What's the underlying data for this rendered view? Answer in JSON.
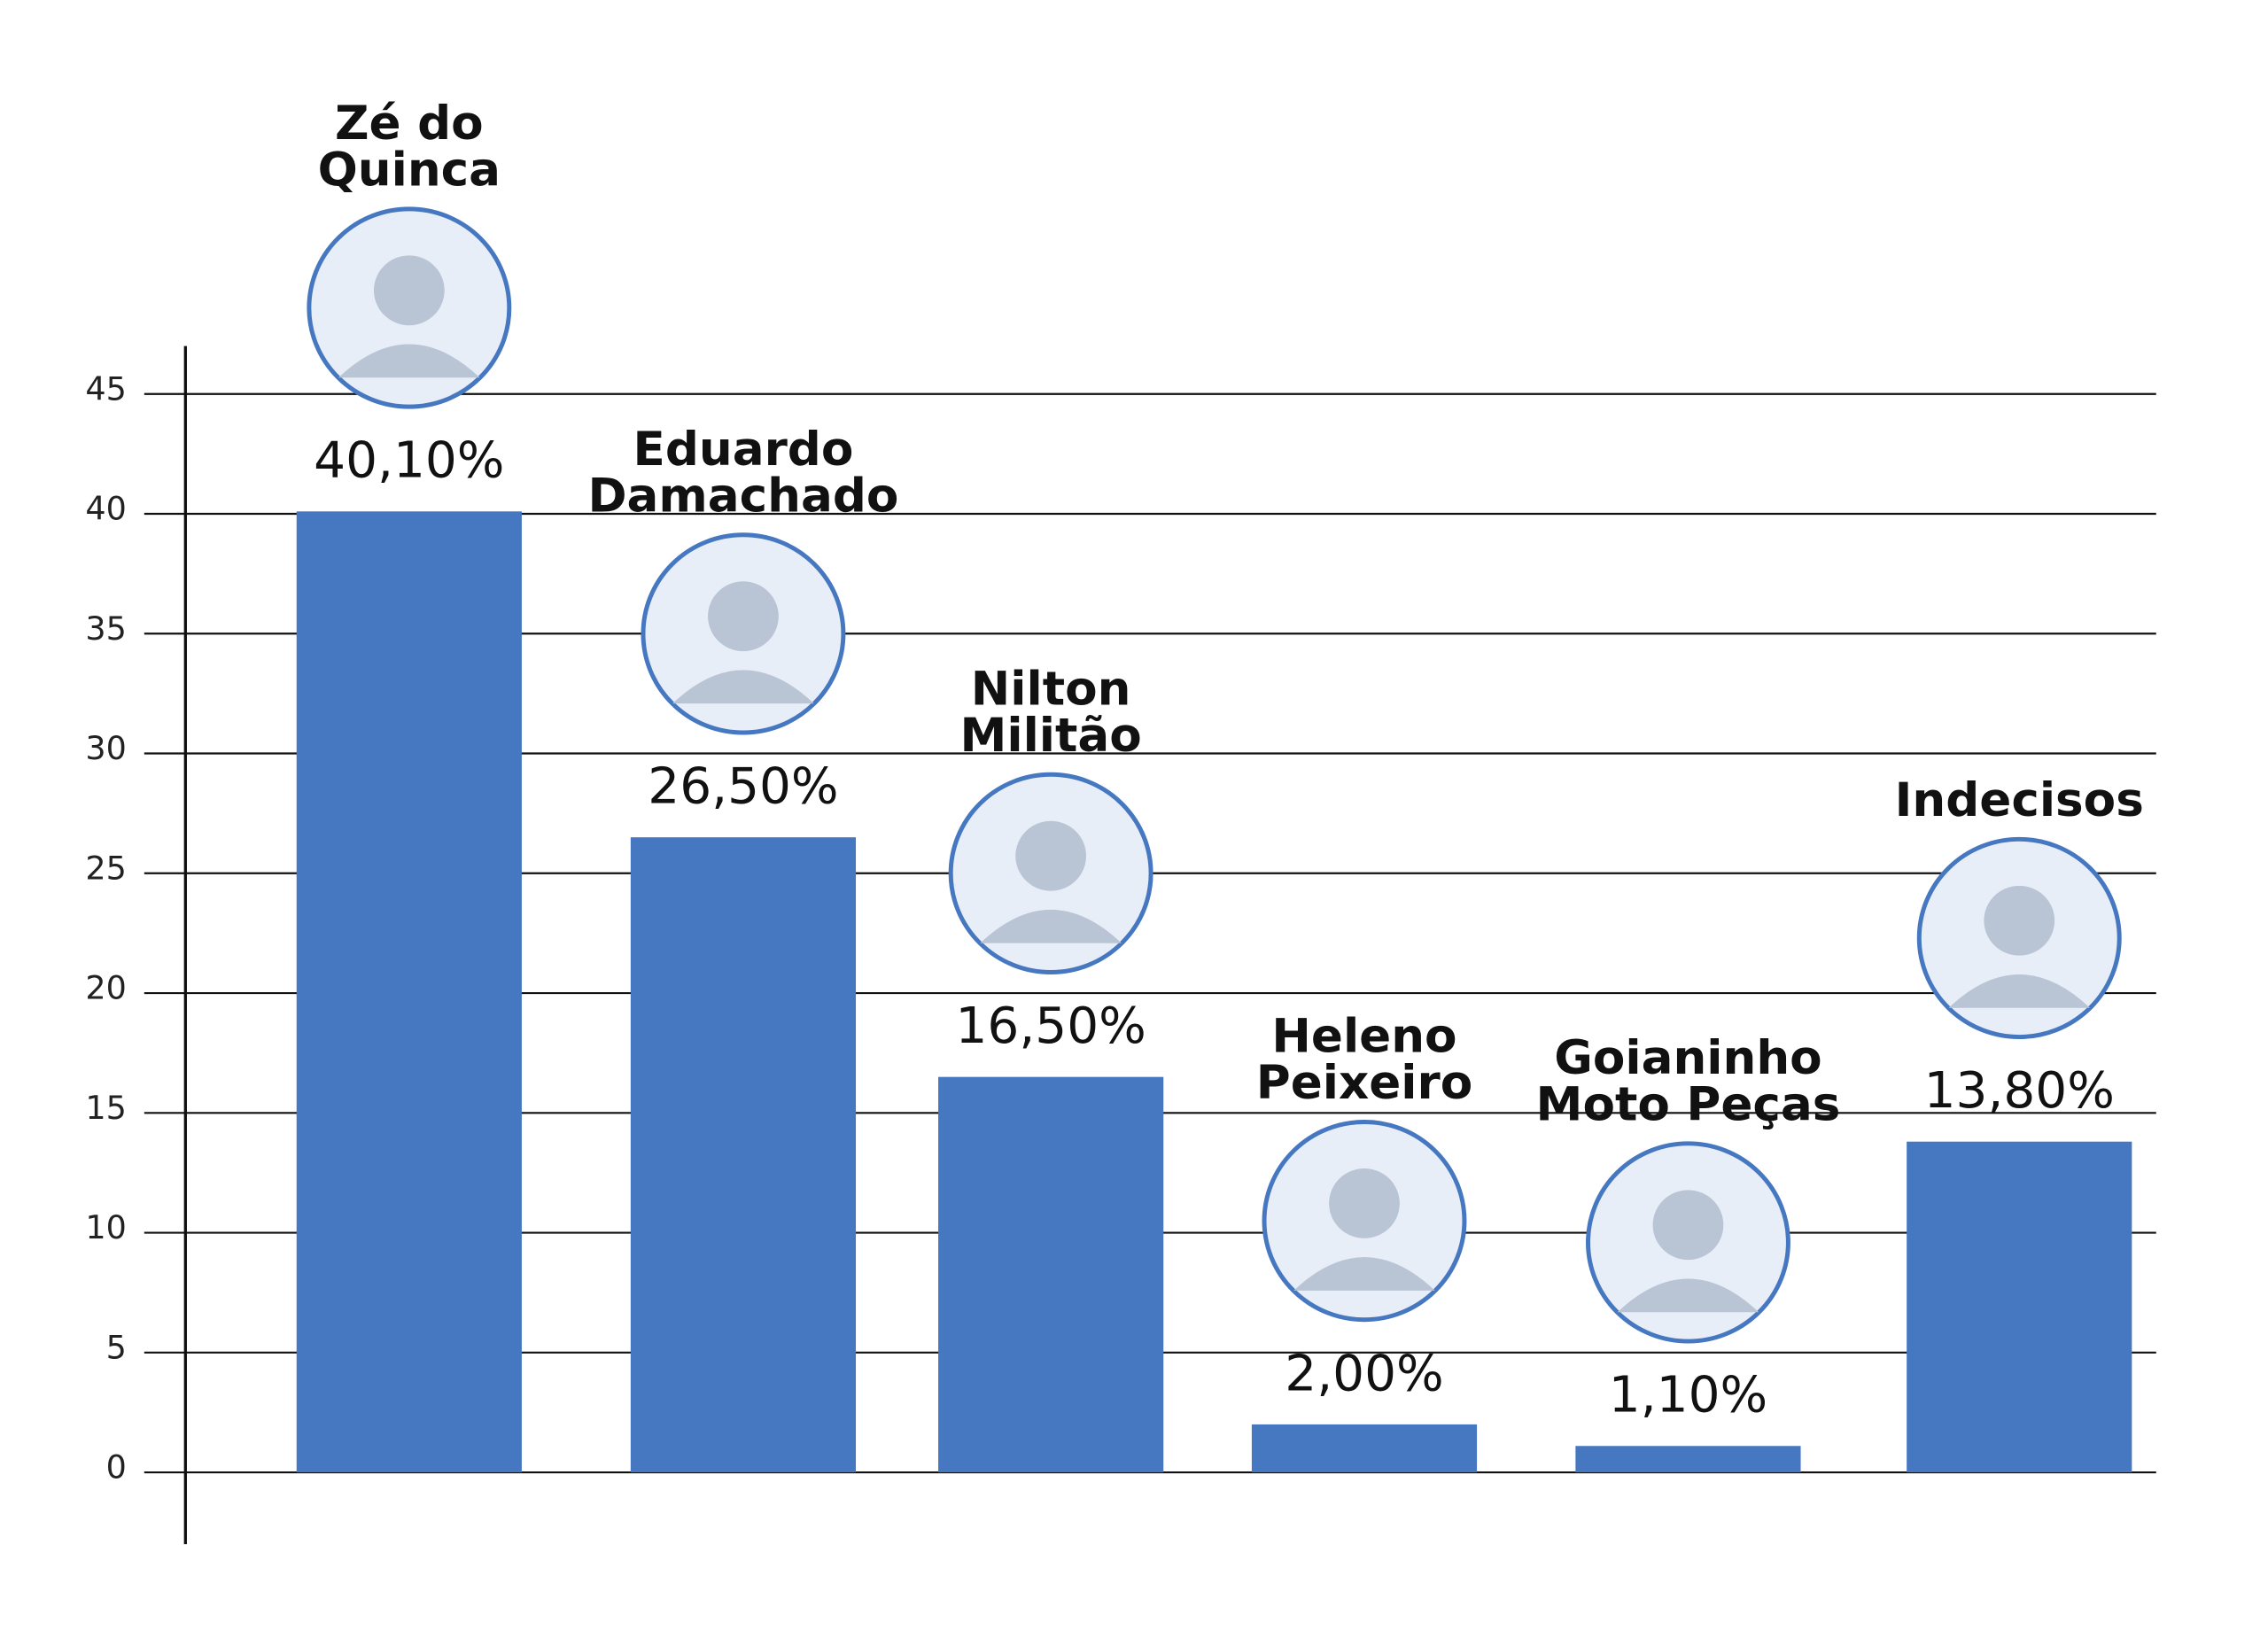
{
  "chart_data": {
    "type": "bar",
    "categories": [
      [
        "Zé do",
        "Quinca"
      ],
      [
        "Eduardo",
        "Damachado"
      ],
      [
        "Nilton",
        "Militão"
      ],
      [
        "Heleno",
        "Peixeiro"
      ],
      [
        "Goianinho",
        "Moto Peças"
      ],
      [
        "Indecisos"
      ]
    ],
    "values": [
      40.1,
      26.5,
      16.5,
      2.0,
      1.1,
      13.8
    ],
    "value_labels": [
      "40,10%",
      "26,50%",
      "16,50%",
      "2,00%",
      "1,10%",
      "13,80%"
    ],
    "color": "#4677c1",
    "ylim": [
      -3,
      47
    ],
    "yticks": [
      0,
      5,
      10,
      15,
      20,
      25,
      30,
      35,
      40,
      45
    ],
    "grid": true
  }
}
